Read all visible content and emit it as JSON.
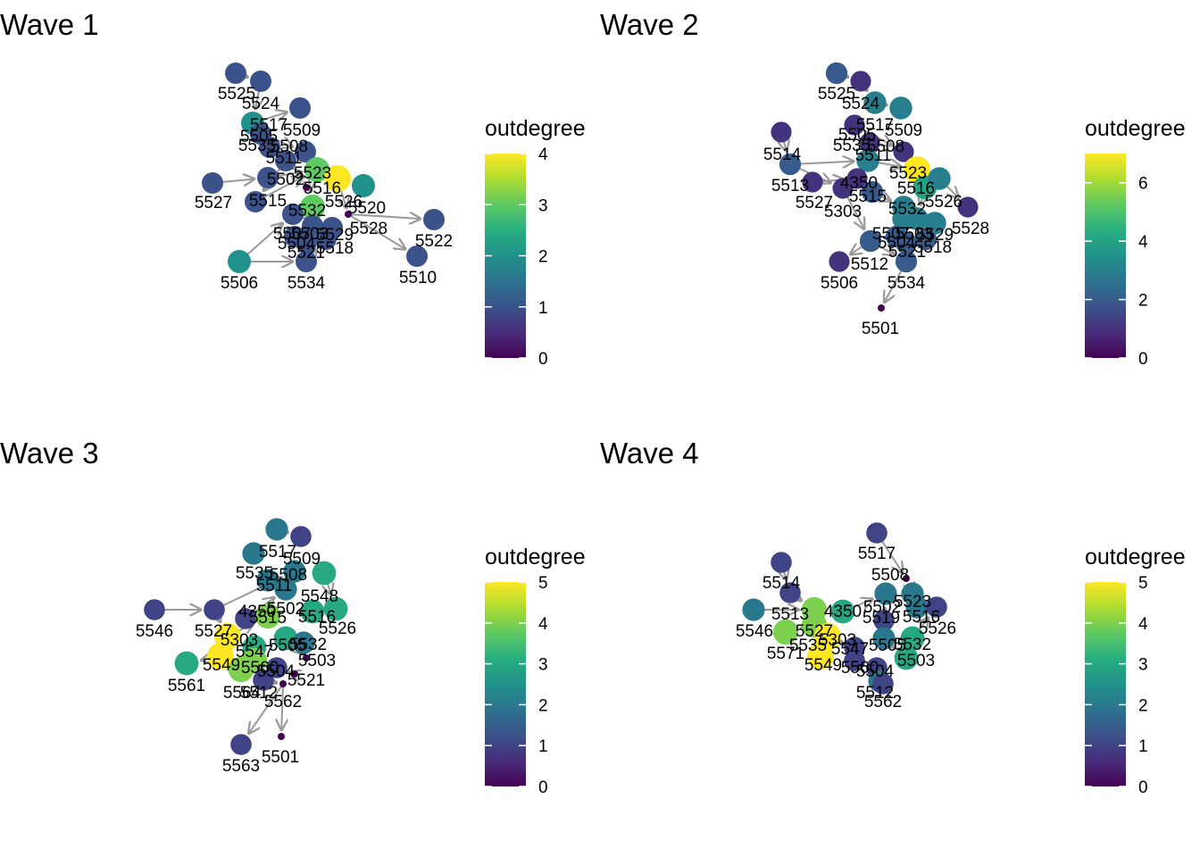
{
  "panels": [
    {
      "title": "Wave 1",
      "legend": {
        "title": "outdegree",
        "ticks": [
          "0",
          "1",
          "2",
          "3",
          "4"
        ],
        "max": 4
      },
      "nodes": [
        {
          "id": "5525",
          "outdegree": 1
        },
        {
          "id": "5524",
          "outdegree": 1
        },
        {
          "id": "5517",
          "outdegree": 2
        },
        {
          "id": "5509",
          "outdegree": 1
        },
        {
          "id": "5505",
          "outdegree": 1
        },
        {
          "id": "5535",
          "outdegree": 1
        },
        {
          "id": "5508",
          "outdegree": 1
        },
        {
          "id": "5511",
          "outdegree": 1
        },
        {
          "id": "5523",
          "outdegree": 3
        },
        {
          "id": "5502",
          "outdegree": 1
        },
        {
          "id": "5516",
          "outdegree": 0
        },
        {
          "id": "5527",
          "outdegree": 1
        },
        {
          "id": "5515",
          "outdegree": 1
        },
        {
          "id": "5526",
          "outdegree": 4
        },
        {
          "id": "5520",
          "outdegree": 2
        },
        {
          "id": "5532",
          "outdegree": 3
        },
        {
          "id": "5528",
          "outdegree": 0
        },
        {
          "id": "5522",
          "outdegree": 1
        },
        {
          "id": "5507",
          "outdegree": 1
        },
        {
          "id": "5503",
          "outdegree": 1
        },
        {
          "id": "5529",
          "outdegree": 1
        },
        {
          "id": "5504",
          "outdegree": 1
        },
        {
          "id": "5521",
          "outdegree": 1
        },
        {
          "id": "5518",
          "outdegree": 1
        },
        {
          "id": "5510",
          "outdegree": 1
        },
        {
          "id": "5506",
          "outdegree": 2
        },
        {
          "id": "5534",
          "outdegree": 1
        }
      ]
    },
    {
      "title": "Wave 2",
      "legend": {
        "title": "outdegree",
        "ticks": [
          "0",
          "2",
          "4",
          "6"
        ],
        "max": 7
      },
      "nodes": [
        {
          "id": "5525",
          "outdegree": 2
        },
        {
          "id": "5524",
          "outdegree": 1
        },
        {
          "id": "5517",
          "outdegree": 3
        },
        {
          "id": "5509",
          "outdegree": 3
        },
        {
          "id": "5505",
          "outdegree": 1
        },
        {
          "id": "5535",
          "outdegree": 1
        },
        {
          "id": "5508",
          "outdegree": 1
        },
        {
          "id": "5511",
          "outdegree": 3
        },
        {
          "id": "5514",
          "outdegree": 1
        },
        {
          "id": "5523",
          "outdegree": 7
        },
        {
          "id": "4350",
          "outdegree": 1
        },
        {
          "id": "5516",
          "outdegree": 4
        },
        {
          "id": "5513",
          "outdegree": 2
        },
        {
          "id": "5527",
          "outdegree": 1
        },
        {
          "id": "5515",
          "outdegree": 2
        },
        {
          "id": "5303",
          "outdegree": 1
        },
        {
          "id": "5526",
          "outdegree": 3
        },
        {
          "id": "5532",
          "outdegree": 3
        },
        {
          "id": "5528",
          "outdegree": 1
        },
        {
          "id": "5507",
          "outdegree": 3
        },
        {
          "id": "5503",
          "outdegree": 3
        },
        {
          "id": "5529",
          "outdegree": 3
        },
        {
          "id": "5504",
          "outdegree": 2
        },
        {
          "id": "5521",
          "outdegree": 2
        },
        {
          "id": "5518",
          "outdegree": 2
        },
        {
          "id": "5512",
          "outdegree": 2
        },
        {
          "id": "5506",
          "outdegree": 1
        },
        {
          "id": "5534",
          "outdegree": 2
        },
        {
          "id": "5501",
          "outdegree": 0
        }
      ]
    },
    {
      "title": "Wave 3",
      "legend": {
        "title": "outdegree",
        "ticks": [
          "0",
          "1",
          "2",
          "3",
          "4",
          "5"
        ],
        "max": 5
      },
      "nodes": [
        {
          "id": "5517",
          "outdegree": 2
        },
        {
          "id": "5509",
          "outdegree": 1
        },
        {
          "id": "5535",
          "outdegree": 2
        },
        {
          "id": "5508",
          "outdegree": 2
        },
        {
          "id": "5511",
          "outdegree": 2
        },
        {
          "id": "5548",
          "outdegree": 3
        },
        {
          "id": "5546",
          "outdegree": 1
        },
        {
          "id": "5527",
          "outdegree": 1
        },
        {
          "id": "4350",
          "outdegree": 1
        },
        {
          "id": "5502",
          "outdegree": 2
        },
        {
          "id": "5515",
          "outdegree": 4
        },
        {
          "id": "5516",
          "outdegree": 3
        },
        {
          "id": "5526",
          "outdegree": 3
        },
        {
          "id": "5303",
          "outdegree": 5
        },
        {
          "id": "5547",
          "outdegree": 3
        },
        {
          "id": "5505",
          "outdegree": 3
        },
        {
          "id": "5532",
          "outdegree": 2
        },
        {
          "id": "5503",
          "outdegree": 0
        },
        {
          "id": "5549",
          "outdegree": 5
        },
        {
          "id": "5560",
          "outdegree": 4
        },
        {
          "id": "5504",
          "outdegree": 1
        },
        {
          "id": "5521",
          "outdegree": 0
        },
        {
          "id": "5561",
          "outdegree": 3
        },
        {
          "id": "5564",
          "outdegree": 4
        },
        {
          "id": "5512",
          "outdegree": 1
        },
        {
          "id": "5562",
          "outdegree": 0
        },
        {
          "id": "5563",
          "outdegree": 1
        },
        {
          "id": "5501",
          "outdegree": 0
        }
      ]
    },
    {
      "title": "Wave 4",
      "legend": {
        "title": "outdegree",
        "ticks": [
          "0",
          "1",
          "2",
          "3",
          "4",
          "5"
        ],
        "max": 5
      },
      "nodes": [
        {
          "id": "5517",
          "outdegree": 1
        },
        {
          "id": "5508",
          "outdegree": 0
        },
        {
          "id": "5514",
          "outdegree": 1
        },
        {
          "id": "5523",
          "outdegree": 2
        },
        {
          "id": "5513",
          "outdegree": 1
        },
        {
          "id": "4350",
          "outdegree": 3
        },
        {
          "id": "5502",
          "outdegree": 2
        },
        {
          "id": "5519",
          "outdegree": 1
        },
        {
          "id": "5516",
          "outdegree": 2
        },
        {
          "id": "5526",
          "outdegree": 1
        },
        {
          "id": "5546",
          "outdegree": 2
        },
        {
          "id": "5527",
          "outdegree": 4
        },
        {
          "id": "5535",
          "outdegree": 4
        },
        {
          "id": "5303",
          "outdegree": 5
        },
        {
          "id": "5571",
          "outdegree": 4
        },
        {
          "id": "5547",
          "outdegree": 1
        },
        {
          "id": "5505",
          "outdegree": 2
        },
        {
          "id": "5532",
          "outdegree": 3
        },
        {
          "id": "5503",
          "outdegree": 3
        },
        {
          "id": "5549",
          "outdegree": 5
        },
        {
          "id": "5560",
          "outdegree": 1
        },
        {
          "id": "5504",
          "outdegree": 1
        },
        {
          "id": "5512",
          "outdegree": 2
        },
        {
          "id": "5562",
          "outdegree": 1
        }
      ]
    }
  ],
  "colors": {
    "edge": "#999999",
    "viridis": [
      "#440154",
      "#472d7b",
      "#3b528b",
      "#2c728e",
      "#21918c",
      "#28ae80",
      "#5ec962",
      "#addc30",
      "#fde725"
    ]
  }
}
